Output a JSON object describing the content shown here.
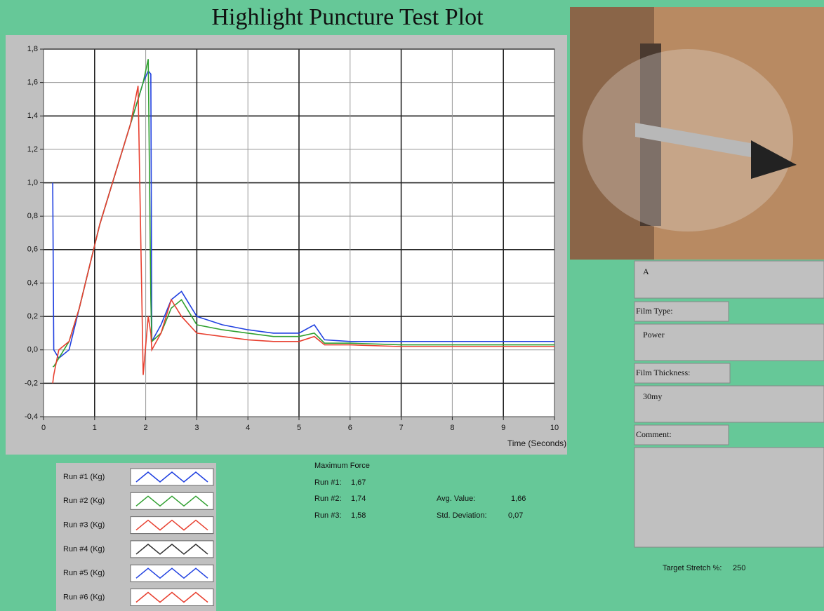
{
  "chart_data": {
    "type": "line",
    "title": "Highlight Puncture Test Plot",
    "x_label": "Time (Seconds)",
    "x": [
      0.18,
      0.2,
      0.3,
      0.5,
      0.7,
      0.9,
      1.1,
      1.3,
      1.5,
      1.7,
      1.85,
      1.95,
      2.05,
      2.1,
      2.12,
      2.3,
      2.5,
      2.7,
      3,
      3.5,
      4,
      4.5,
      5,
      5.3,
      5.5,
      6,
      7,
      8,
      9,
      10
    ],
    "series": [
      {
        "name": "Run #1 (Kg)",
        "color": "#2040e0",
        "values": [
          1.0,
          0.0,
          -0.05,
          0.0,
          0.25,
          0.5,
          0.75,
          0.95,
          1.15,
          1.35,
          1.5,
          1.6,
          1.67,
          1.65,
          0.05,
          0.15,
          0.3,
          0.35,
          0.2,
          0.15,
          0.12,
          0.1,
          0.1,
          0.15,
          0.06,
          0.05,
          0.05,
          0.05,
          0.05,
          0.05
        ]
      },
      {
        "name": "Run #2 (Kg)",
        "color": "#30a030",
        "values": [
          -0.1,
          -0.1,
          -0.05,
          0.05,
          0.25,
          0.5,
          0.75,
          0.95,
          1.15,
          1.35,
          1.5,
          1.6,
          1.74,
          0.3,
          0.05,
          0.1,
          0.25,
          0.3,
          0.15,
          0.12,
          0.1,
          0.08,
          0.08,
          0.1,
          0.04,
          0.04,
          0.03,
          0.03,
          0.03,
          0.03
        ]
      },
      {
        "name": "Run #3 (Kg)",
        "color": "#e84030",
        "values": [
          -0.2,
          -0.15,
          0.0,
          0.05,
          0.25,
          0.5,
          0.75,
          0.95,
          1.15,
          1.35,
          1.58,
          -0.15,
          0.2,
          0.1,
          0.0,
          0.1,
          0.3,
          0.2,
          0.1,
          0.08,
          0.06,
          0.05,
          0.05,
          0.08,
          0.03,
          0.03,
          0.02,
          0.02,
          0.02,
          0.02
        ]
      },
      {
        "name": "Run #4 (Kg)",
        "color": "#303030",
        "values": [
          null,
          null,
          null,
          null,
          null,
          null,
          null,
          null,
          null,
          null,
          null,
          null,
          null,
          null,
          null,
          null,
          null,
          null,
          null,
          null,
          null,
          null,
          null,
          null,
          null,
          null,
          null,
          null,
          null,
          null
        ]
      },
      {
        "name": "Run #5 (Kg)",
        "color": "#2040e0",
        "values": [
          null,
          null,
          null,
          null,
          null,
          null,
          null,
          null,
          null,
          null,
          null,
          null,
          null,
          null,
          null,
          null,
          null,
          null,
          null,
          null,
          null,
          null,
          null,
          null,
          null,
          null,
          null,
          null,
          null,
          null
        ]
      },
      {
        "name": "Run #6 (Kg)",
        "color": "#e84030",
        "values": [
          null,
          null,
          null,
          null,
          null,
          null,
          null,
          null,
          null,
          null,
          null,
          null,
          null,
          null,
          null,
          null,
          null,
          null,
          null,
          null,
          null,
          null,
          null,
          null,
          null,
          null,
          null,
          null,
          null,
          null
        ]
      }
    ],
    "xlim": [
      0,
      10
    ],
    "xticks": [
      0,
      1,
      2,
      3,
      4,
      5,
      6,
      7,
      8,
      9,
      10
    ],
    "ylim": [
      -0.4,
      1.8
    ],
    "yticks": [
      {
        "value": -0.4,
        "label": "-0,4"
      },
      {
        "value": -0.2,
        "label": "-0,2"
      },
      {
        "value": 0,
        "label": "0,0"
      },
      {
        "value": 0.2,
        "label": "0,2"
      },
      {
        "value": 0.4,
        "label": "0,4"
      },
      {
        "value": 0.6,
        "label": "0,6"
      },
      {
        "value": 0.8,
        "label": "0,8"
      },
      {
        "value": 1.0,
        "label": "1,0"
      },
      {
        "value": 1.2,
        "label": "1,2"
      },
      {
        "value": 1.4,
        "label": "1,4"
      },
      {
        "value": 1.6,
        "label": "1,6"
      },
      {
        "value": 1.8,
        "label": "1,8"
      }
    ],
    "grid": true
  },
  "stats": {
    "title": "Maximum Force",
    "runs": [
      {
        "label": "Run #1:",
        "value": "1,67"
      },
      {
        "label": "Run #2:",
        "value": "1,74"
      },
      {
        "label": "Run #3:",
        "value": "1,58"
      }
    ],
    "avg_label": "Avg. Value:",
    "avg_value": "1,66",
    "std_label": "Std. Deviation:",
    "std_value": "0,07"
  },
  "form": {
    "sample": "A",
    "film_type_label": "Film Type:",
    "film_type": "Power",
    "film_thickness_label": "Film Thickness:",
    "film_thickness": "30my",
    "comment_label": "Comment:",
    "target_label": "Target Stretch %:",
    "target_value": "250"
  }
}
